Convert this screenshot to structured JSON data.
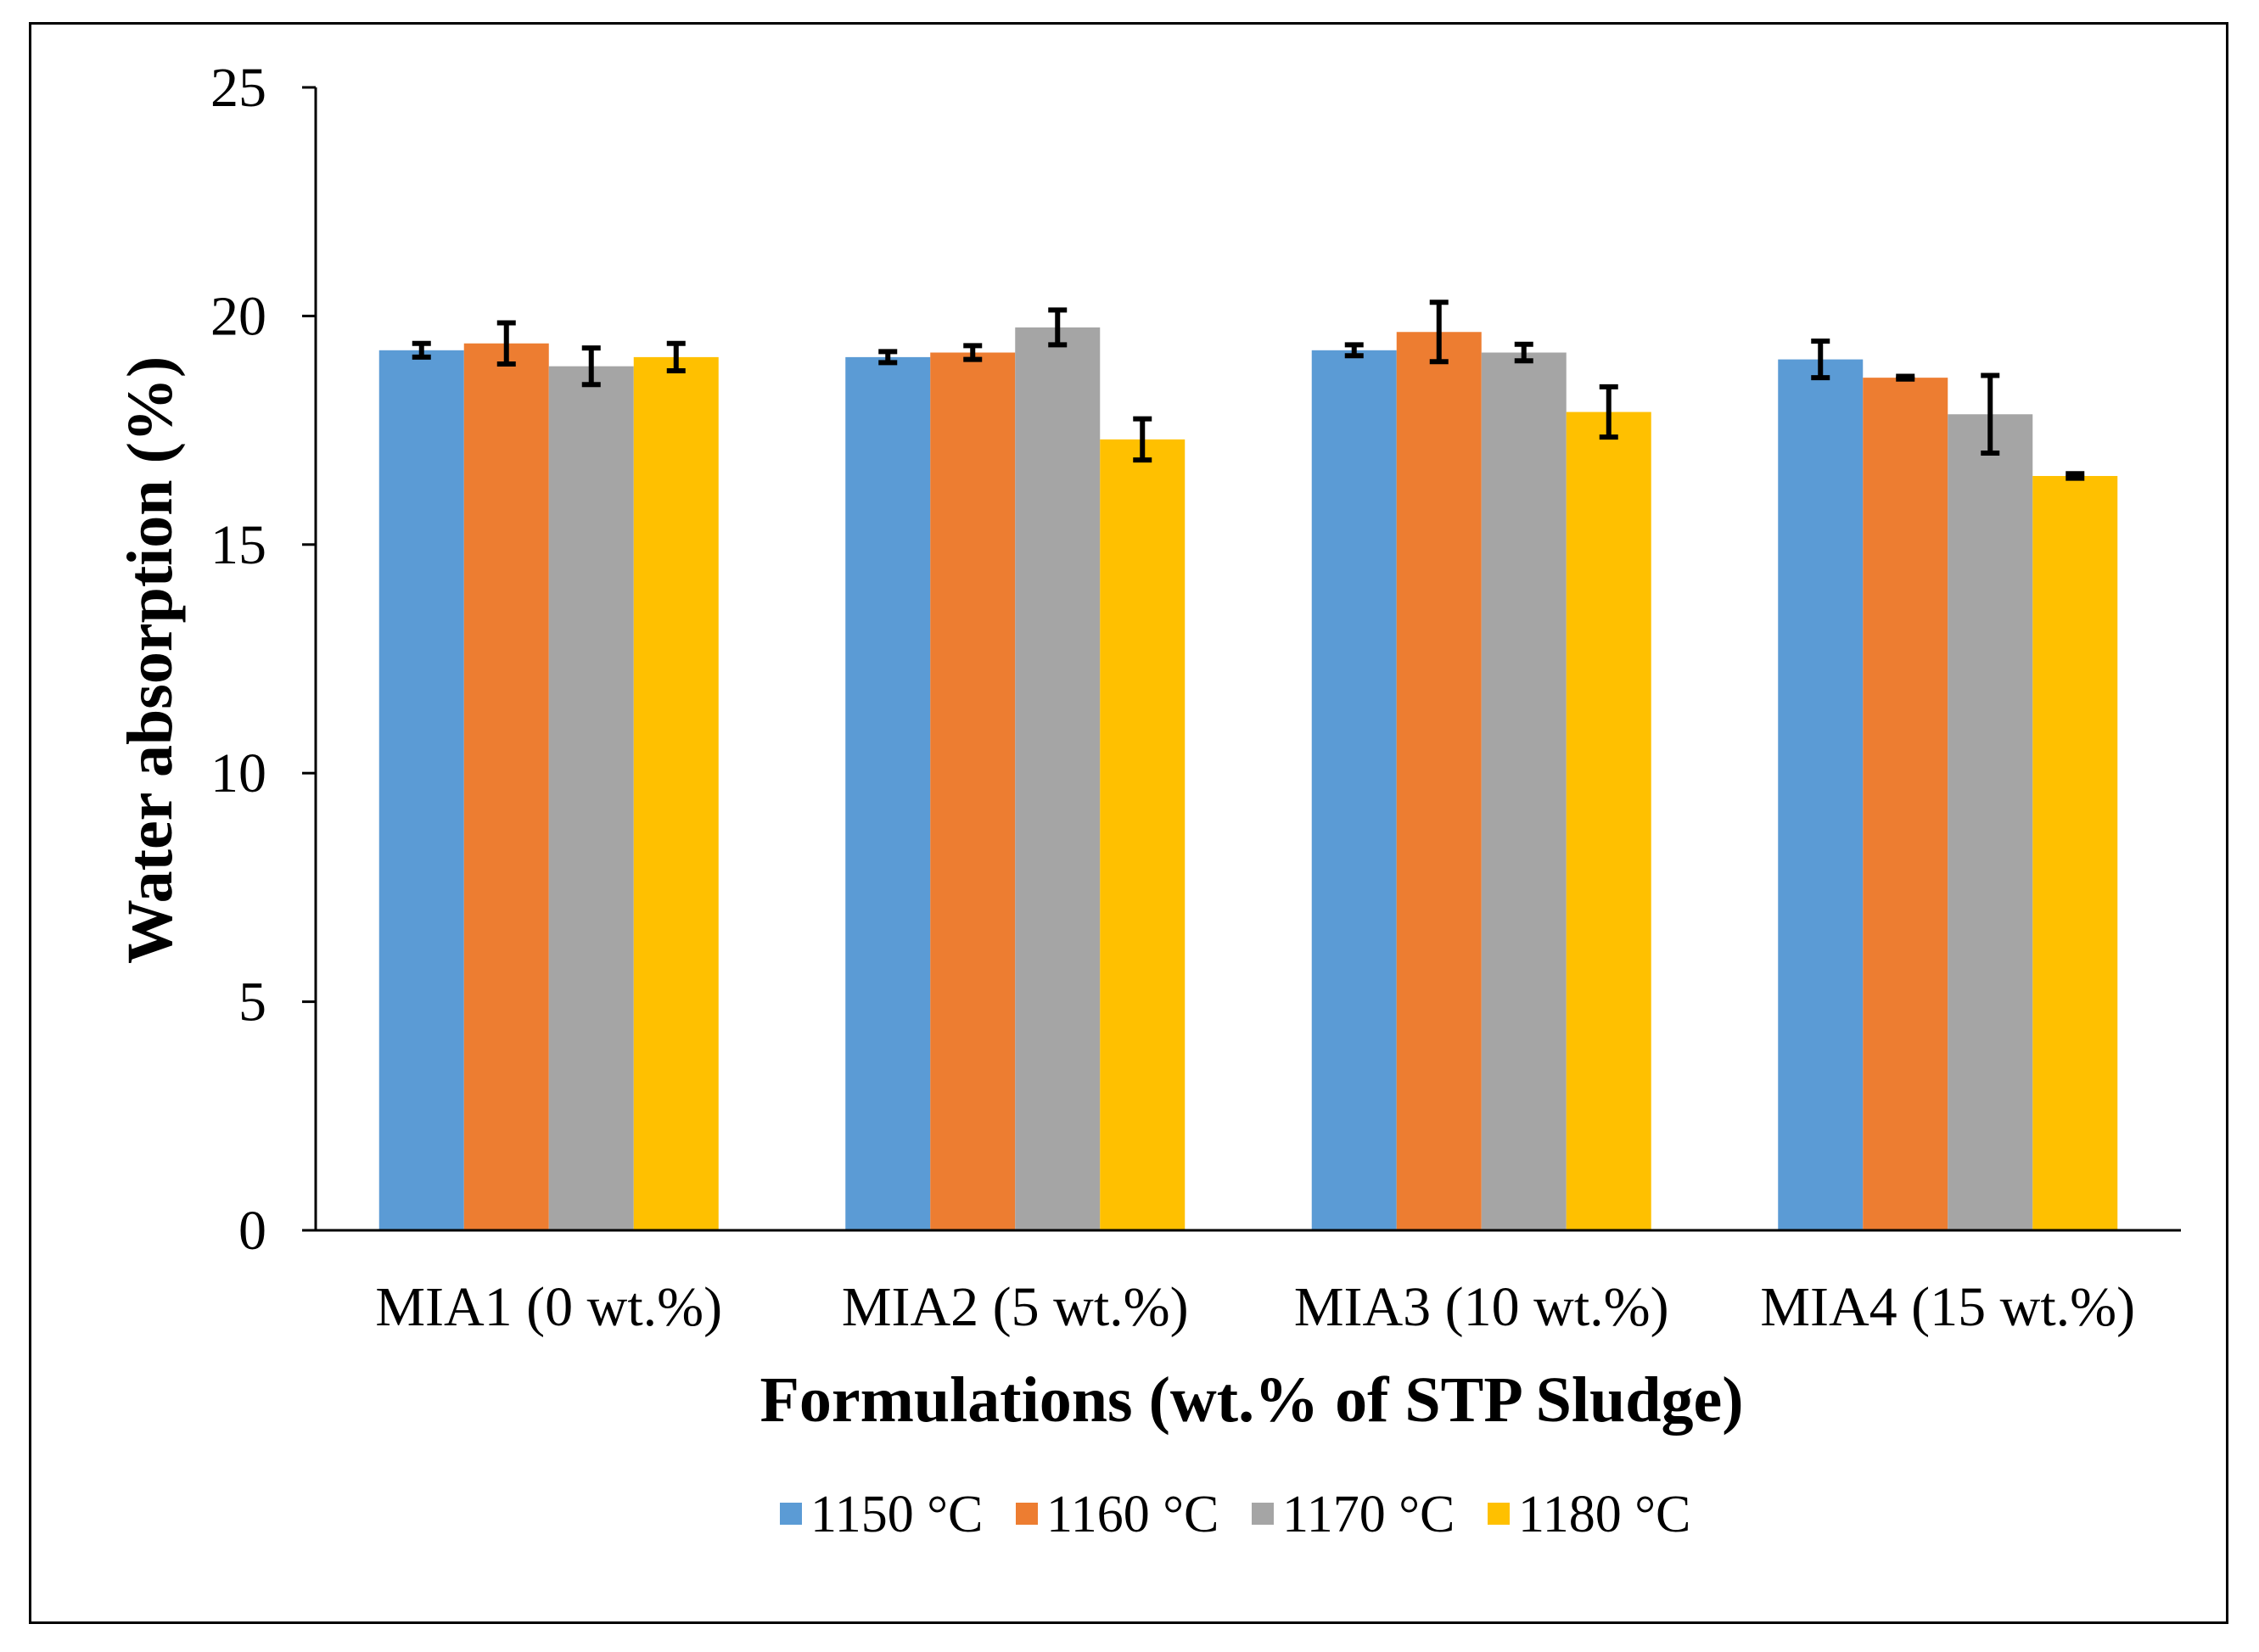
{
  "chart_data": {
    "type": "bar",
    "title": "",
    "xlabel": "Formulations (wt.% of STP Sludge)",
    "ylabel": "Water absorption (%)",
    "ylim": [
      0,
      25
    ],
    "yticks": [
      0,
      5,
      10,
      15,
      20,
      25
    ],
    "categories": [
      "MIA1 (0 wt.%)",
      "MIA2 (5 wt.%)",
      "MIA3 (10 wt.%)",
      "MIA4 (15 wt.%)"
    ],
    "series": [
      {
        "name": "1150 °C",
        "color": "#5B9BD5",
        "values": [
          19.25,
          19.1,
          19.25,
          19.05
        ],
        "errors": [
          0.15,
          0.12,
          0.12,
          0.4
        ]
      },
      {
        "name": "1160 °C",
        "color": "#ED7D31",
        "values": [
          19.4,
          19.2,
          19.65,
          18.65
        ],
        "errors": [
          0.45,
          0.15,
          0.65,
          0.03
        ]
      },
      {
        "name": "1170 °C",
        "color": "#A5A5A5",
        "values": [
          18.9,
          19.75,
          19.2,
          17.85
        ],
        "errors": [
          0.4,
          0.38,
          0.18,
          0.85
        ]
      },
      {
        "name": "1180 °C",
        "color": "#FFC000",
        "values": [
          19.1,
          17.3,
          17.9,
          16.5
        ],
        "errors": [
          0.3,
          0.45,
          0.55,
          0.05
        ]
      }
    ],
    "grid": false,
    "legend": "bottom"
  }
}
